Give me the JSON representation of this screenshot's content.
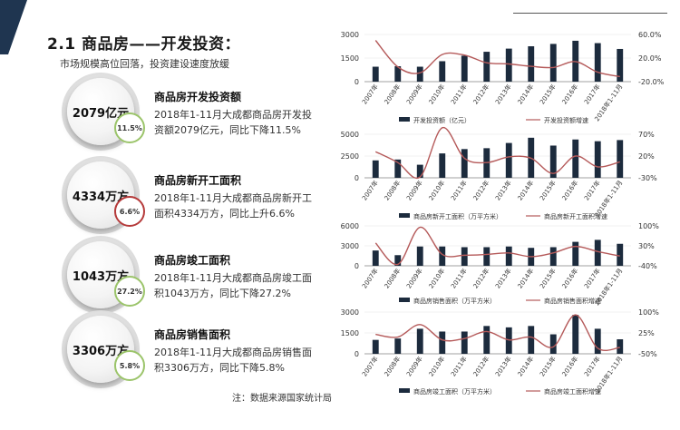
{
  "header": {
    "title": "2.1 商品房——开发投资：",
    "subtitle": "市场规模高位回落，投资建设速度放缓"
  },
  "stats": [
    {
      "value": "2079亿元",
      "change": "11.5%",
      "heading": "商品房开发投资额",
      "line1": "2018年1-11月大成都商品房开发投",
      "line2": "资额2079亿元，同比下降11.5%"
    },
    {
      "value": "4334万方",
      "change": "6.6%",
      "heading": "商品房新开工面积",
      "line1": "2018年1-11月大成都商品房新开工",
      "line2": "面积4334万方，同比上升6.6%"
    },
    {
      "value": "1043万方",
      "change": "27.2%",
      "heading": "商品房竣工面积",
      "line1": "2018年1-11月大成都商品房竣工面",
      "line2": "积1043万方，同比下降27.2%"
    },
    {
      "value": "3306万方",
      "change": "5.8%",
      "heading": "商品房销售面积",
      "line1": "2018年1-11月大成都商品房销售面",
      "line2": "积3306万方，同比下降5.8%"
    }
  ],
  "footnote": "注：数据来源国家统计局",
  "colors": {
    "bar": "#1c2b3d",
    "line": "#b55a5a",
    "badge_green": "#9bc46a",
    "badge_red": "#b53a3a",
    "corner": "#1f3550"
  },
  "chart_data": [
    {
      "type": "bar",
      "categories": [
        "2007年",
        "2008年",
        "2009年",
        "2010年",
        "2011年",
        "2012年",
        "2013年",
        "2014年",
        "2015年",
        "2016年",
        "2017年",
        "2018年1-11月"
      ],
      "series": [
        {
          "name": "开发投资额（亿元）",
          "type": "bar",
          "axis": "left",
          "values": [
            950,
            980,
            950,
            1300,
            1650,
            1900,
            2100,
            2250,
            2400,
            2600,
            2450,
            2079
          ]
        },
        {
          "name": "开发投资额增速",
          "type": "line",
          "axis": "right",
          "values": [
            50,
            5,
            -5,
            26,
            25,
            12,
            10,
            6,
            4,
            14,
            -4,
            -11.5
          ]
        }
      ],
      "y_left": {
        "ticks": [
          0,
          1500,
          3000
        ],
        "range": [
          0,
          3000
        ]
      },
      "y_right": {
        "ticks": [
          "-20.0%",
          "20.0%",
          "60.0%"
        ],
        "range": [
          -20,
          60
        ]
      }
    },
    {
      "type": "bar",
      "categories": [
        "2007年",
        "2008年",
        "2009年",
        "2010年",
        "2011年",
        "2012年",
        "2013年",
        "2014年",
        "2015年",
        "2016年",
        "2017年",
        "2018年1-11月"
      ],
      "series": [
        {
          "name": "商品房新开工面积（万平方米）",
          "type": "bar",
          "axis": "left",
          "values": [
            2000,
            2100,
            1500,
            2800,
            3300,
            3400,
            4000,
            4600,
            3700,
            4400,
            4200,
            4334
          ]
        },
        {
          "name": "商品房新开工面积增速",
          "type": "line",
          "axis": "right",
          "values": [
            30,
            5,
            -28,
            85,
            15,
            5,
            18,
            15,
            -20,
            20,
            -5,
            6.6
          ]
        }
      ],
      "y_left": {
        "ticks": [
          0,
          2500,
          5000
        ],
        "range": [
          0,
          5000
        ]
      },
      "y_right": {
        "ticks": [
          "-30%",
          "20%",
          "70%"
        ],
        "range": [
          -30,
          70
        ]
      }
    },
    {
      "type": "bar",
      "categories": [
        "2007年",
        "2008年",
        "2009年",
        "2010年",
        "2011年",
        "2012年",
        "2013年",
        "2014年",
        "2015年",
        "2016年",
        "2017年",
        "2018年1-11月"
      ],
      "series": [
        {
          "name": "商品房销售面积（万平方米）",
          "type": "bar",
          "axis": "left",
          "values": [
            2300,
            1600,
            2900,
            2900,
            2800,
            2800,
            2900,
            2700,
            2800,
            3600,
            3900,
            3306
          ]
        },
        {
          "name": "商品房销售面积增速",
          "type": "line",
          "axis": "right",
          "values": [
            40,
            -35,
            95,
            0,
            -3,
            0,
            5,
            -8,
            5,
            28,
            10,
            -5.8
          ]
        }
      ],
      "y_left": {
        "ticks": [
          0,
          3000,
          6000
        ],
        "range": [
          0,
          6000
        ]
      },
      "y_right": {
        "ticks": [
          "-40%",
          "30%",
          "100%"
        ],
        "range": [
          -40,
          100
        ]
      }
    },
    {
      "type": "bar",
      "categories": [
        "2007年",
        "2008年",
        "2009年",
        "2010年",
        "2011年",
        "2012年",
        "2013年",
        "2014年",
        "2015年",
        "2016年",
        "2017年",
        "2018年1-11月"
      ],
      "series": [
        {
          "name": "商品房竣工面积（万平方米）",
          "type": "bar",
          "axis": "left",
          "values": [
            1000,
            1100,
            1800,
            1600,
            1600,
            2000,
            1900,
            2000,
            1400,
            2800,
            1800,
            1043
          ]
        },
        {
          "name": "商品房竣工面积增速",
          "type": "line",
          "axis": "right",
          "values": [
            20,
            10,
            55,
            0,
            5,
            30,
            0,
            10,
            -25,
            90,
            -30,
            -27.2
          ]
        }
      ],
      "y_left": {
        "ticks": [
          0,
          1500,
          3000
        ],
        "range": [
          0,
          3000
        ]
      },
      "y_right": {
        "ticks": [
          "-50%",
          "25%",
          "100%"
        ],
        "range": [
          -50,
          100
        ]
      }
    }
  ]
}
